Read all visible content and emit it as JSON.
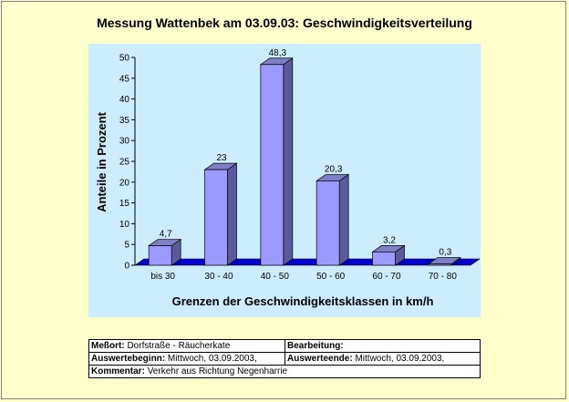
{
  "colors": {
    "background": "#ffffcc",
    "plot_area": "#ccecff",
    "bar_front": "#9999ff",
    "bar_side": "#5a5a9c",
    "bar_top": "#7f7fc8",
    "floor": "#0000cc"
  },
  "chart_data": {
    "type": "bar",
    "title": "Messung Wattenbek am 03.09.03: Geschwindigkeitsverteilung",
    "xlabel": "Grenzen der Geschwindigkeitsklassen in km/h",
    "ylabel": "Anteile in Prozent",
    "categories": [
      "bis 30",
      "30 - 40",
      "40 - 50",
      "50 - 60",
      "60 - 70",
      "70 - 80"
    ],
    "values": [
      4.7,
      23,
      48.3,
      20.3,
      3.2,
      0.3
    ],
    "value_labels": [
      "4,7",
      "23",
      "48,3",
      "20,3",
      "3,2",
      "0,3"
    ],
    "ylim": [
      0,
      50
    ],
    "yticks": [
      0,
      5,
      10,
      15,
      20,
      25,
      30,
      35,
      40,
      45,
      50
    ],
    "grid": false,
    "legend": "none",
    "style": "3d-column"
  },
  "info": {
    "messort_label": "Meßort:",
    "messort_value": "Dorfstraße - Räucherkate",
    "bearbeitung_label": "Bearbeitung:",
    "bearbeitung_value": "",
    "auswertebeginn_label": "Auswertebeginn:",
    "auswertebeginn_value": "Mittwoch, 03.09.2003,",
    "auswerteende_label": "Auswerteende:",
    "auswerteende_value": "Mittwoch, 03.09.2003,",
    "kommentar_label": "Kommentar:",
    "kommentar_value": "Verkehr aus Richtung Negenharrie"
  }
}
